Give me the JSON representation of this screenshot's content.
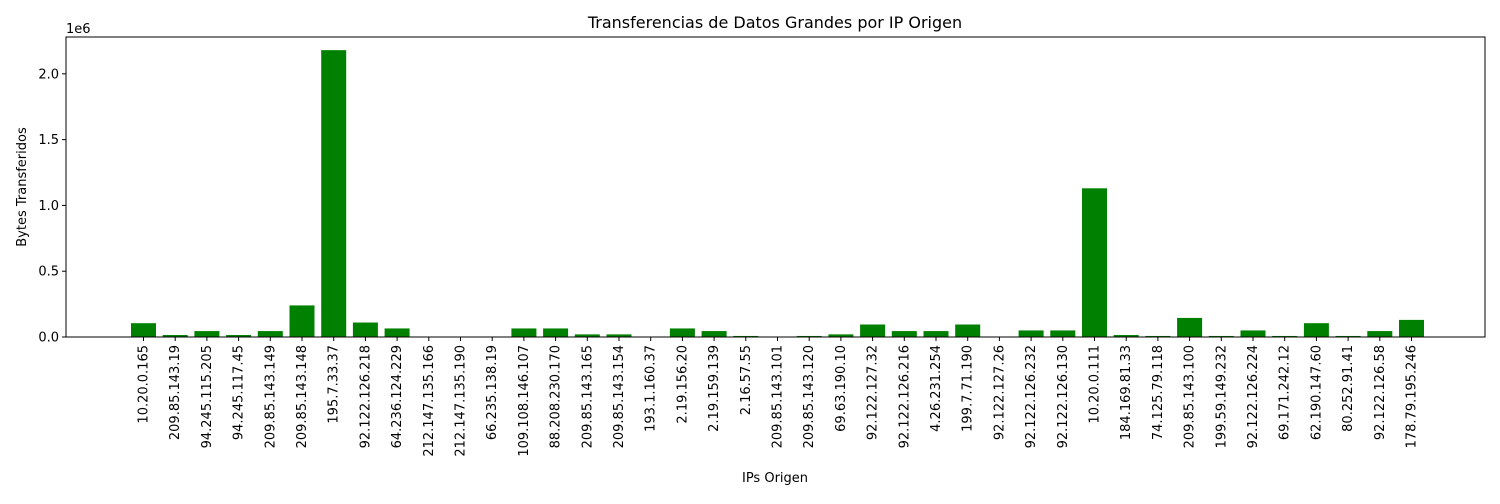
{
  "chart_data": {
    "type": "bar",
    "title": "Transferencias de Datos Grandes por IP Origen",
    "xlabel": "IPs Origen",
    "ylabel": "Bytes Transferidos",
    "offset_label": "1e6",
    "ylim": [
      0,
      2.28
    ],
    "y_ticks": [
      "0.0",
      "0.5",
      "1.0",
      "1.5",
      "2.0"
    ],
    "y_tick_values": [
      0.0,
      0.5,
      1.0,
      1.5,
      2.0
    ],
    "bar_color": "#008000",
    "grid": false,
    "legend": "none",
    "categories": [
      "10.20.0.165",
      "209.85.143.19",
      "94.245.115.205",
      "94.245.117.45",
      "209.85.143.149",
      "209.85.143.148",
      "195.7.33.37",
      "92.122.126.218",
      "64.236.124.229",
      "212.147.135.166",
      "212.147.135.190",
      "66.235.138.19",
      "109.108.146.107",
      "88.208.230.170",
      "209.85.143.165",
      "209.85.143.154",
      "193.1.160.37",
      "2.19.156.20",
      "2.19.159.139",
      "2.16.57.55",
      "209.85.143.101",
      "209.85.143.120",
      "69.63.190.10",
      "92.122.127.32",
      "92.122.126.216",
      "4.26.231.254",
      "199.7.71.190",
      "92.122.127.26",
      "92.122.126.232",
      "92.122.126.130",
      "10.20.0.111",
      "184.169.81.33",
      "74.125.79.118",
      "209.85.143.100",
      "199.59.149.232",
      "92.122.126.224",
      "69.171.242.12",
      "62.190.147.60",
      "80.252.91.41",
      "92.122.126.58",
      "178.79.195.246"
    ],
    "values": [
      0.105,
      0.015,
      0.045,
      0.015,
      0.045,
      0.24,
      2.18,
      0.11,
      0.065,
      0.0,
      0.0,
      0.0,
      0.065,
      0.065,
      0.02,
      0.02,
      0.0,
      0.065,
      0.045,
      0.008,
      0.0,
      0.008,
      0.02,
      0.095,
      0.045,
      0.045,
      0.095,
      0.0,
      0.05,
      0.05,
      1.13,
      0.015,
      0.008,
      0.145,
      0.008,
      0.05,
      0.008,
      0.105,
      0.008,
      0.045,
      0.13
    ]
  }
}
